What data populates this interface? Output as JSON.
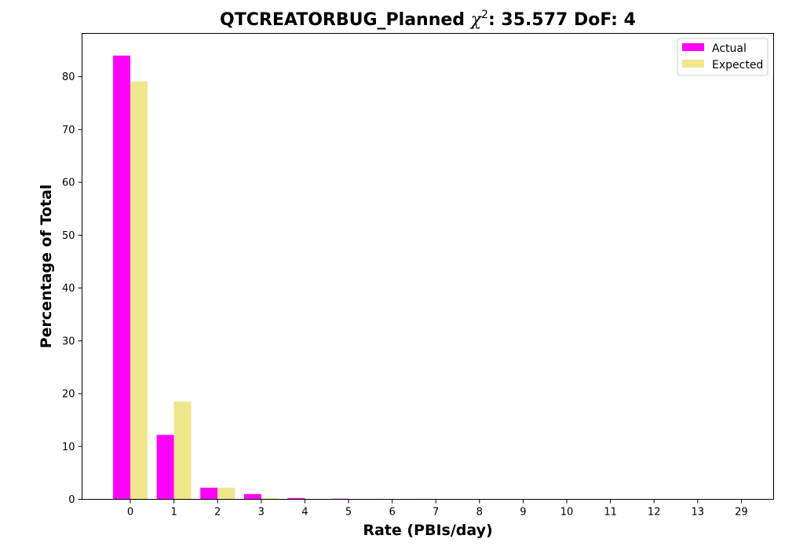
{
  "chart_data": {
    "type": "bar",
    "title_prefix": "QTCREATORBUG_Planned ",
    "title_chi": "χ",
    "title_sup": "2",
    "title_suffix": ": 35.577 DoF: 4",
    "xlabel": "Rate (PBIs/day)",
    "ylabel": "Percentage of Total",
    "categories": [
      "0",
      "1",
      "2",
      "3",
      "4",
      "5",
      "6",
      "7",
      "8",
      "9",
      "10",
      "11",
      "12",
      "13",
      "29"
    ],
    "series": [
      {
        "name": "Actual",
        "color": "#ff00ff",
        "values": [
          84.0,
          12.2,
          2.2,
          1.0,
          0.25,
          0.12,
          0.08,
          0.08,
          0.06,
          0.06,
          0.06,
          0.0,
          0.0,
          0.06,
          0.0
        ]
      },
      {
        "name": "Expected",
        "color": "#f0e68c",
        "values": [
          79.1,
          18.5,
          2.2,
          0.2,
          0.02,
          0.0,
          0.0,
          0.0,
          0.0,
          0.0,
          0.0,
          0.0,
          0.0,
          0.0,
          0.0
        ]
      }
    ],
    "ylim": [
      0,
      88.2
    ],
    "yticks": [
      0,
      10,
      20,
      30,
      40,
      50,
      60,
      70,
      80
    ],
    "legend_position": "top-right",
    "grid": false
  }
}
